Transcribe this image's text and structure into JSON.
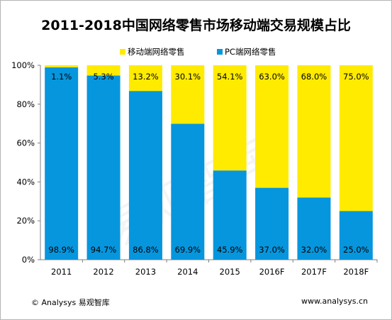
{
  "title": "2011-2018中国网络零售市场移动端交易规模占比",
  "legend": [
    {
      "label": "移动端网络零售",
      "color": "#ffeb00"
    },
    {
      "label": "PC端网络零售",
      "color": "#0696de"
    }
  ],
  "footer": {
    "left": "© Analysys 易观智库",
    "right": "www.analysys.cn"
  },
  "watermark": "易观智库",
  "chart_data": {
    "type": "bar",
    "stacked": true,
    "categories": [
      "2011",
      "2012",
      "2013",
      "2014",
      "2015",
      "2016F",
      "2017F",
      "2018F"
    ],
    "series": [
      {
        "name": "PC端网络零售",
        "color": "#0696de",
        "values": [
          98.9,
          94.7,
          86.8,
          69.9,
          45.9,
          37.0,
          32.0,
          25.0
        ],
        "labels": [
          "98.9%",
          "94.7%",
          "86.8%",
          "69.9%",
          "45.9%",
          "37.0%",
          "32.0%",
          "25.0%"
        ]
      },
      {
        "name": "移动端网络零售",
        "color": "#ffeb00",
        "values": [
          1.1,
          5.3,
          13.2,
          30.1,
          54.1,
          63.0,
          68.0,
          75.0
        ],
        "labels": [
          "1.1%",
          "5.3%",
          "13.2%",
          "30.1%",
          "54.1%",
          "63.0%",
          "68.0%",
          "75.0%"
        ]
      }
    ],
    "yticks": [
      "0%",
      "20%",
      "40%",
      "60%",
      "80%",
      "100%"
    ],
    "ylim": [
      0,
      100
    ],
    "grid": false,
    "legend_position": "top"
  }
}
